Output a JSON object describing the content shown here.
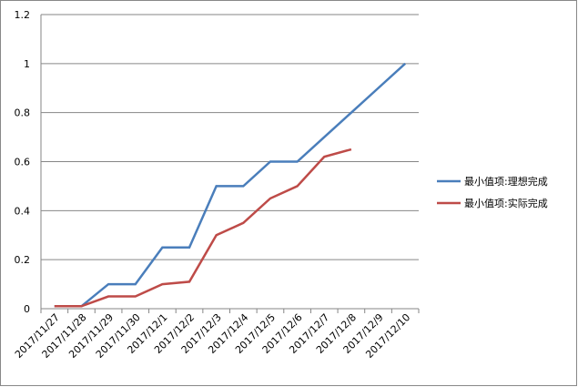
{
  "chart_data": {
    "type": "line",
    "categories": [
      "2017/11/27",
      "2017/11/28",
      "2017/11/29",
      "2017/11/30",
      "2017/12/1",
      "2017/12/2",
      "2017/12/3",
      "2017/12/4",
      "2017/12/5",
      "2017/12/6",
      "2017/12/7",
      "2017/12/8",
      "2017/12/9",
      "2017/12/10"
    ],
    "series": [
      {
        "name": "最小值项:理想完成",
        "color": "#4a7ebb",
        "values": [
          0.01,
          0.01,
          0.1,
          0.1,
          0.25,
          0.25,
          0.5,
          0.5,
          0.6,
          0.6,
          0.7,
          0.8,
          0.9,
          1.0
        ]
      },
      {
        "name": "最小值项:实际完成",
        "color": "#be4b48",
        "values": [
          0.01,
          0.01,
          0.05,
          0.05,
          0.1,
          0.11,
          0.3,
          0.35,
          0.45,
          0.5,
          0.62,
          0.65,
          null,
          null
        ]
      }
    ],
    "ylim": [
      0,
      1.2
    ],
    "yticks": [
      0,
      0.2,
      0.4,
      0.6,
      0.8,
      1,
      1.2
    ],
    "grid": true,
    "legend": "right"
  }
}
